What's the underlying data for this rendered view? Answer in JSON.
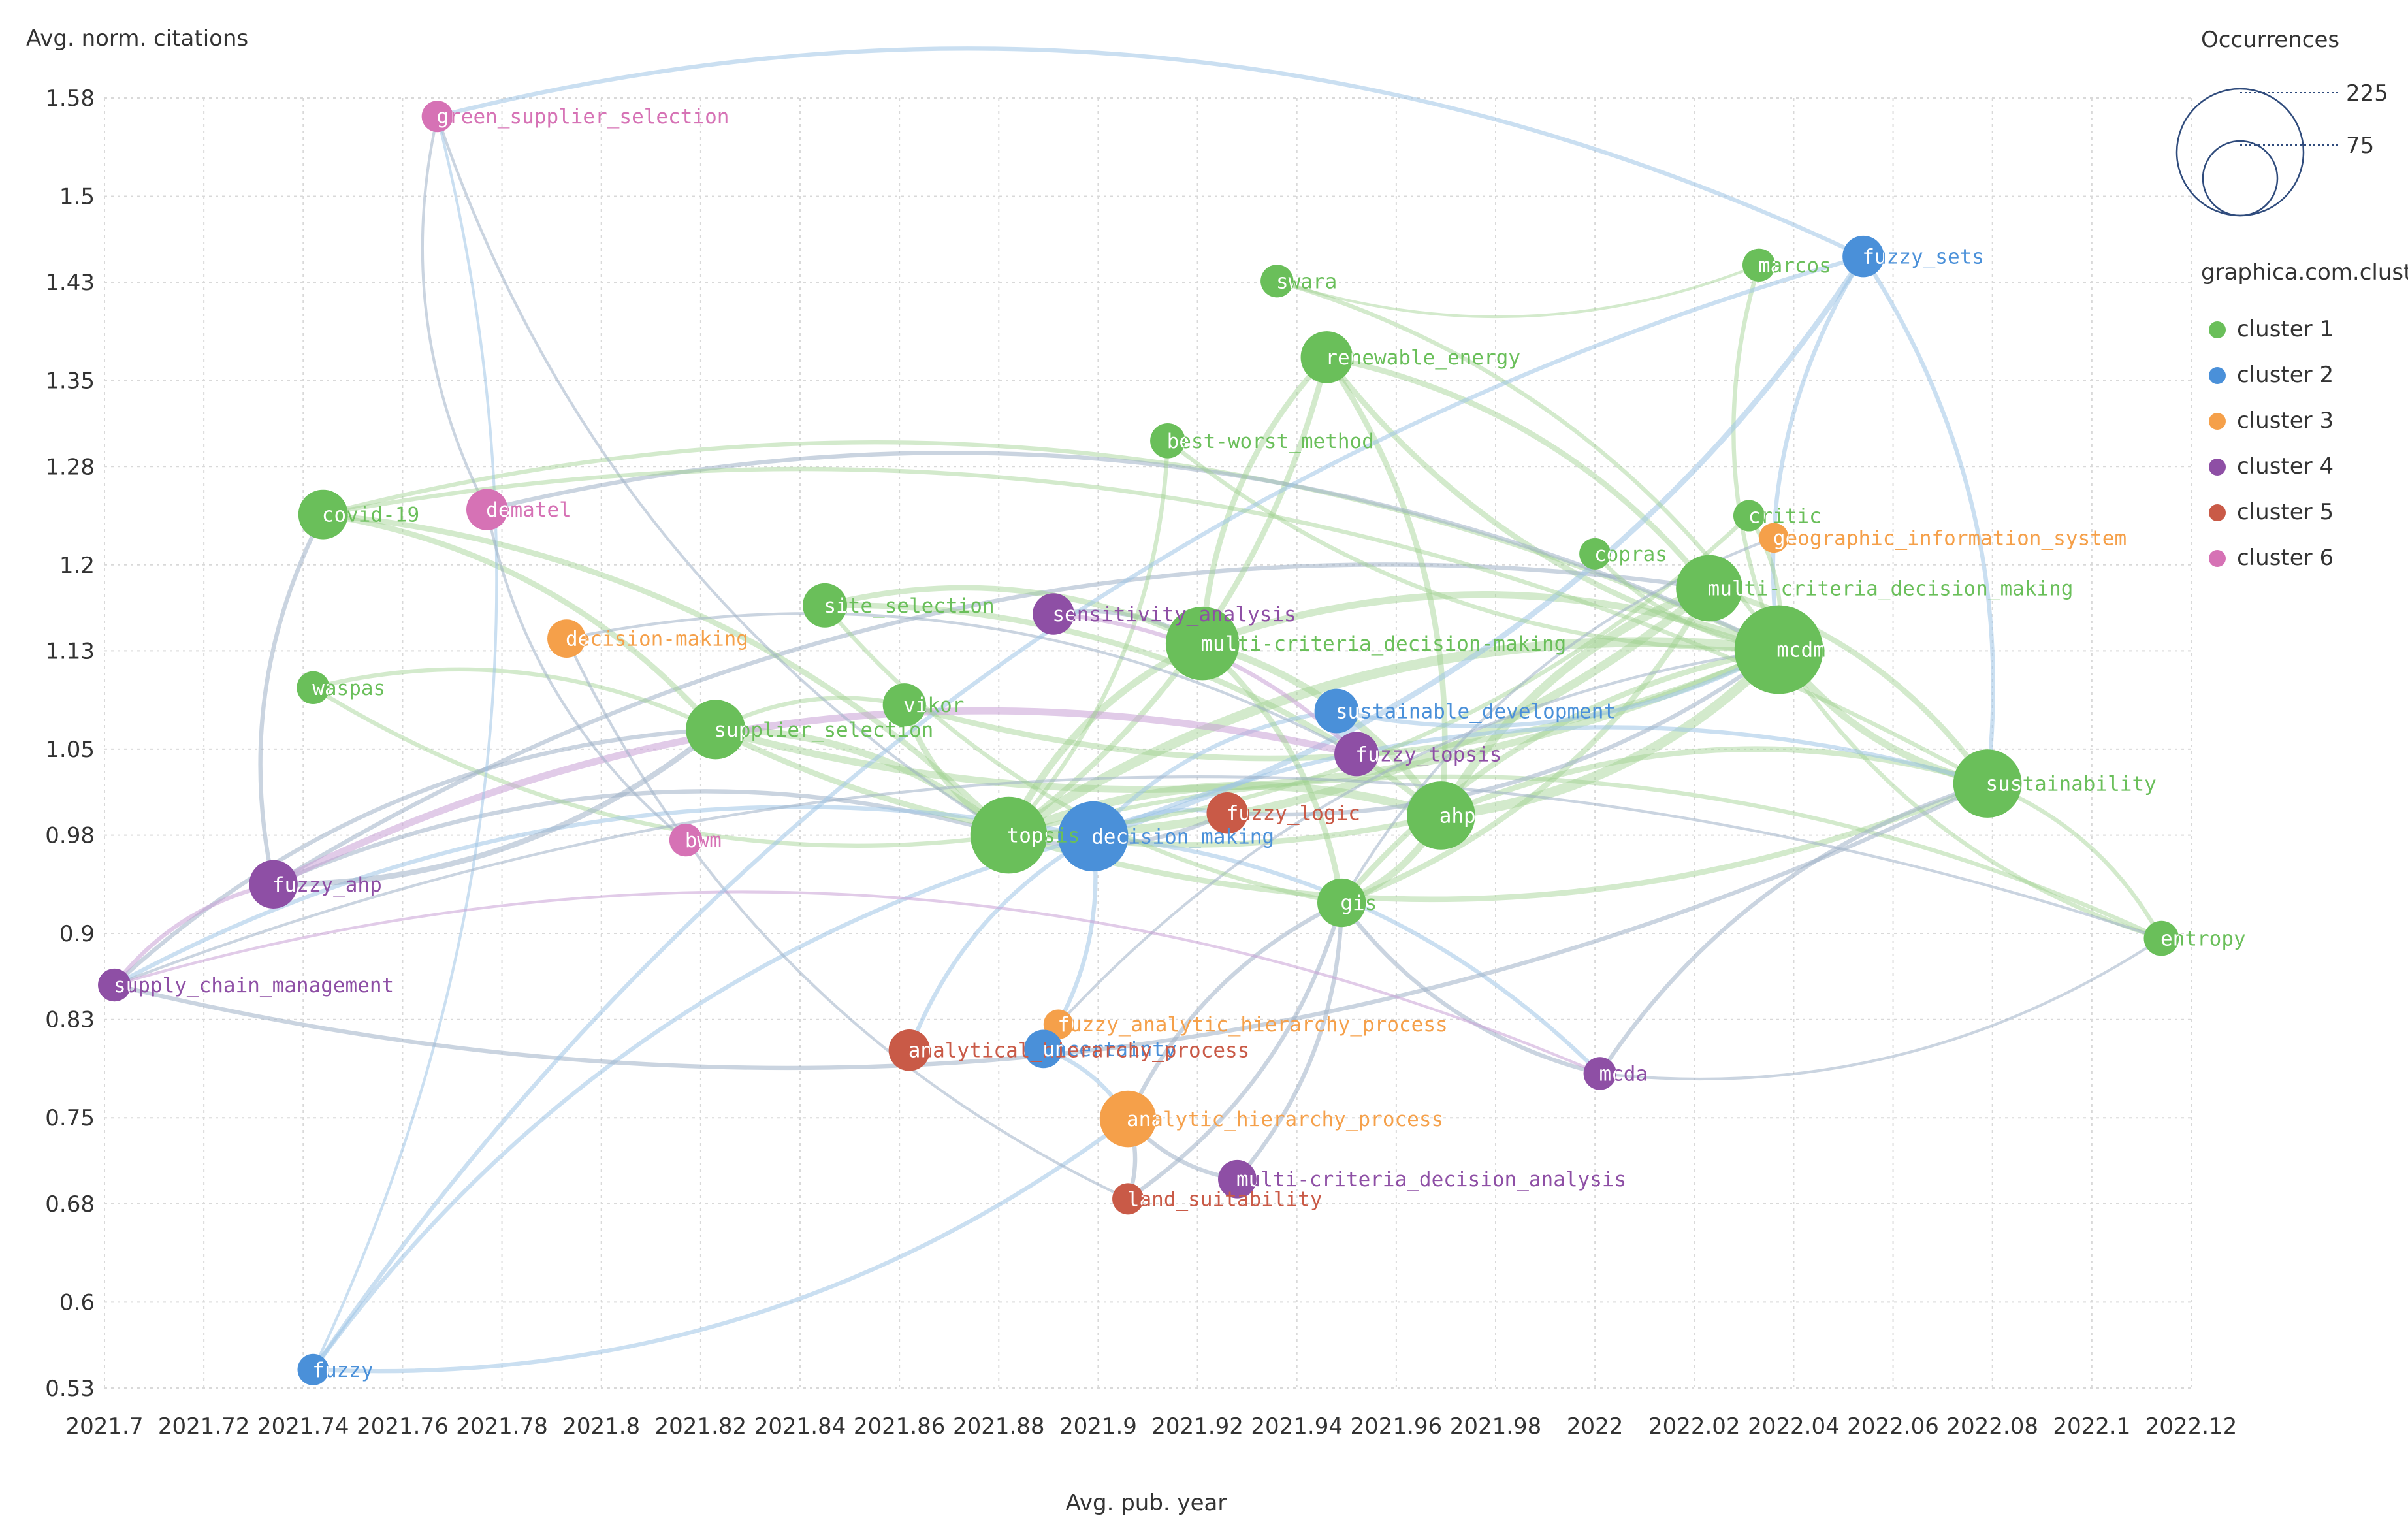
{
  "chart_data": {
    "type": "scatter",
    "subtype": "bubble-network",
    "xlabel": "Avg. pub. year",
    "ylabel": "Avg. norm. citations",
    "xlim": [
      2021.7,
      2022.12
    ],
    "ylim": [
      0.53,
      1.58
    ],
    "x_ticks": [
      "2021.7",
      "2021.72",
      "2021.74",
      "2021.76",
      "2021.78",
      "2021.8",
      "2021.82",
      "2021.84",
      "2021.86",
      "2021.88",
      "2021.9",
      "2021.92",
      "2021.94",
      "2021.96",
      "2021.98",
      "2022",
      "2022.02",
      "2022.04",
      "2022.06",
      "2022.08",
      "2022.1",
      "2022.12"
    ],
    "y_ticks": [
      "1.58",
      "1.5",
      "1.43",
      "1.35",
      "1.28",
      "1.2",
      "1.13",
      "1.05",
      "0.98",
      "0.9",
      "0.83",
      "0.75",
      "0.68",
      "0.6",
      "0.53"
    ],
    "size_legend": {
      "title": "Occurrences",
      "values": [
        225,
        75
      ]
    },
    "cluster_legend": {
      "title": "graphica.com.clusters",
      "items": [
        {
          "name": "cluster 1",
          "color": "#6abf5a"
        },
        {
          "name": "cluster 2",
          "color": "#4a90d9"
        },
        {
          "name": "cluster 3",
          "color": "#f5a04a"
        },
        {
          "name": "cluster 4",
          "color": "#8e4fa5"
        },
        {
          "name": "cluster 5",
          "color": "#c95a47"
        },
        {
          "name": "cluster 6",
          "color": "#d672b5"
        }
      ]
    },
    "nodes": [
      {
        "label": "green supplier selection",
        "x": 2021.767,
        "y": 1.565,
        "occ": 20,
        "cluster": 6
      },
      {
        "label": "fuzzy sets",
        "x": 2022.054,
        "y": 1.451,
        "occ": 35,
        "cluster": 2
      },
      {
        "label": "marcos",
        "x": 2022.033,
        "y": 1.444,
        "occ": 22,
        "cluster": 1
      },
      {
        "label": "swara",
        "x": 2021.936,
        "y": 1.431,
        "occ": 22,
        "cluster": 1
      },
      {
        "label": "renewable energy",
        "x": 2021.946,
        "y": 1.369,
        "occ": 55,
        "cluster": 1
      },
      {
        "label": "best-worst method",
        "x": 2021.914,
        "y": 1.301,
        "occ": 25,
        "cluster": 1
      },
      {
        "label": "covid-19",
        "x": 2021.744,
        "y": 1.241,
        "occ": 50,
        "cluster": 1
      },
      {
        "label": "dematel",
        "x": 2021.777,
        "y": 1.245,
        "occ": 35,
        "cluster": 6
      },
      {
        "label": "critic",
        "x": 2022.031,
        "y": 1.24,
        "occ": 20,
        "cluster": 1
      },
      {
        "label": "geographic information system",
        "x": 2022.036,
        "y": 1.222,
        "occ": 18,
        "cluster": 3
      },
      {
        "label": "copras",
        "x": 2022.0,
        "y": 1.209,
        "occ": 20,
        "cluster": 1
      },
      {
        "label": "multi-criteria decision making",
        "x": 2022.023,
        "y": 1.181,
        "occ": 90,
        "cluster": 1
      },
      {
        "label": "site selection",
        "x": 2021.845,
        "y": 1.167,
        "occ": 40,
        "cluster": 1
      },
      {
        "label": "sensitivity analysis",
        "x": 2021.891,
        "y": 1.16,
        "occ": 35,
        "cluster": 4
      },
      {
        "label": "decision-making",
        "x": 2021.793,
        "y": 1.14,
        "occ": 30,
        "cluster": 3
      },
      {
        "label": "multi-criteria decision-making",
        "x": 2021.921,
        "y": 1.136,
        "occ": 110,
        "cluster": 1
      },
      {
        "label": "mcdm",
        "x": 2022.037,
        "y": 1.131,
        "occ": 160,
        "cluster": 1
      },
      {
        "label": "waspas",
        "x": 2021.742,
        "y": 1.1,
        "occ": 22,
        "cluster": 1
      },
      {
        "label": "sustainable development",
        "x": 2021.948,
        "y": 1.081,
        "occ": 40,
        "cluster": 2
      },
      {
        "label": "vikor",
        "x": 2021.861,
        "y": 1.086,
        "occ": 38,
        "cluster": 1
      },
      {
        "label": "supplier selection",
        "x": 2021.823,
        "y": 1.066,
        "occ": 72,
        "cluster": 1
      },
      {
        "label": "fuzzy topsis",
        "x": 2021.952,
        "y": 1.046,
        "occ": 40,
        "cluster": 4
      },
      {
        "label": "sustainability",
        "x": 2022.079,
        "y": 1.022,
        "occ": 95,
        "cluster": 1
      },
      {
        "label": "fuzzy logic",
        "x": 2021.926,
        "y": 0.998,
        "occ": 35,
        "cluster": 5
      },
      {
        "label": "ahp",
        "x": 2021.969,
        "y": 0.996,
        "occ": 95,
        "cluster": 1
      },
      {
        "label": "topsis",
        "x": 2021.882,
        "y": 0.98,
        "occ": 120,
        "cluster": 1
      },
      {
        "label": "decision making",
        "x": 2021.899,
        "y": 0.979,
        "occ": 100,
        "cluster": 2
      },
      {
        "label": "bwm",
        "x": 2021.817,
        "y": 0.976,
        "occ": 22,
        "cluster": 6
      },
      {
        "label": "fuzzy ahp",
        "x": 2021.734,
        "y": 0.94,
        "occ": 48,
        "cluster": 4
      },
      {
        "label": "gis",
        "x": 2021.949,
        "y": 0.925,
        "occ": 48,
        "cluster": 1
      },
      {
        "label": "entropy",
        "x": 2022.114,
        "y": 0.896,
        "occ": 25,
        "cluster": 1
      },
      {
        "label": "supply chain management",
        "x": 2021.702,
        "y": 0.858,
        "occ": 22,
        "cluster": 4
      },
      {
        "label": "fuzzy analytic hierarchy process",
        "x": 2021.892,
        "y": 0.826,
        "occ": 18,
        "cluster": 3
      },
      {
        "label": "uncertainty",
        "x": 2021.889,
        "y": 0.806,
        "occ": 30,
        "cluster": 2
      },
      {
        "label": "analytical hierarchy process",
        "x": 2021.862,
        "y": 0.805,
        "occ": 35,
        "cluster": 5
      },
      {
        "label": "mcda",
        "x": 2022.001,
        "y": 0.786,
        "occ": 22,
        "cluster": 4
      },
      {
        "label": "analytic hierarchy process",
        "x": 2021.906,
        "y": 0.749,
        "occ": 65,
        "cluster": 3
      },
      {
        "label": "multi-criteria decision analysis",
        "x": 2021.928,
        "y": 0.7,
        "occ": 30,
        "cluster": 4
      },
      {
        "label": "land suitability",
        "x": 2021.906,
        "y": 0.684,
        "occ": 20,
        "cluster": 5
      },
      {
        "label": "fuzzy",
        "x": 2021.742,
        "y": 0.545,
        "occ": 20,
        "cluster": 2
      }
    ],
    "links": [
      [
        "mcdm",
        "topsis",
        6
      ],
      [
        "mcdm",
        "ahp",
        6
      ],
      [
        "mcdm",
        "multi-criteria decision-making",
        4
      ],
      [
        "mcdm",
        "supplier selection",
        4
      ],
      [
        "mcdm",
        "sustainability",
        4
      ],
      [
        "mcdm",
        "renewable energy",
        3
      ],
      [
        "mcdm",
        "covid-19",
        2
      ],
      [
        "mcdm",
        "vikor",
        3
      ],
      [
        "mcdm",
        "gis",
        3
      ],
      [
        "mcdm",
        "fuzzy sets",
        2
      ],
      [
        "mcdm",
        "entropy",
        2
      ],
      [
        "mcdm",
        "marcos",
        2
      ],
      [
        "mcdm",
        "critic",
        2
      ],
      [
        "multi-criteria decision making",
        "topsis",
        5
      ],
      [
        "multi-criteria decision making",
        "ahp",
        5
      ],
      [
        "multi-criteria decision making",
        "sustainability",
        3
      ],
      [
        "multi-criteria decision making",
        "renewable energy",
        3
      ],
      [
        "multi-criteria decision making",
        "gis",
        3
      ],
      [
        "multi-criteria decision making",
        "fuzzy ahp",
        2
      ],
      [
        "topsis",
        "ahp",
        5
      ],
      [
        "topsis",
        "supplier selection",
        4
      ],
      [
        "topsis",
        "multi-criteria decision-making",
        4
      ],
      [
        "topsis",
        "covid-19",
        3
      ],
      [
        "topsis",
        "vikor",
        3
      ],
      [
        "topsis",
        "fuzzy ahp",
        2
      ],
      [
        "topsis",
        "waspas",
        2
      ],
      [
        "topsis",
        "sustainability",
        3
      ],
      [
        "topsis",
        "entropy",
        2
      ],
      [
        "topsis",
        "renewable energy",
        3
      ],
      [
        "ahp",
        "gis",
        4
      ],
      [
        "ahp",
        "multi-criteria decision-making",
        4
      ],
      [
        "ahp",
        "supplier selection",
        3
      ],
      [
        "ahp",
        "site selection",
        3
      ],
      [
        "ahp",
        "sustainability",
        3
      ],
      [
        "ahp",
        "renewable energy",
        3
      ],
      [
        "decision making",
        "sustainable development",
        2
      ],
      [
        "decision making",
        "fuzzy sets",
        3
      ],
      [
        "decision making",
        "uncertainty",
        2
      ],
      [
        "decision making",
        "analytical hierarchy process",
        2
      ],
      [
        "decision making",
        "sustainability",
        2
      ],
      [
        "decision making",
        "supply chain management",
        2
      ],
      [
        "decision making",
        "mcda",
        2
      ],
      [
        "decision making",
        "fuzzy",
        2
      ],
      [
        "decision making",
        "fuzzy logic",
        2
      ],
      [
        "supplier selection",
        "covid-19",
        3
      ],
      [
        "supplier selection",
        "fuzzy ahp",
        3
      ],
      [
        "supplier selection",
        "supply chain management",
        2
      ],
      [
        "supplier selection",
        "vikor",
        2
      ],
      [
        "supplier selection",
        "waspas",
        2
      ],
      [
        "fuzzy ahp",
        "fuzzy topsis",
        4
      ],
      [
        "fuzzy ahp",
        "supply chain management",
        2
      ],
      [
        "fuzzy ahp",
        "covid-19",
        2
      ],
      [
        "green supplier selection",
        "dematel",
        1
      ],
      [
        "green supplier selection",
        "fuzzy sets",
        2
      ],
      [
        "green supplier selection",
        "topsis",
        1
      ],
      [
        "green supplier selection",
        "fuzzy",
        1
      ],
      [
        "dematel",
        "bwm",
        1
      ],
      [
        "dematel",
        "mcdm",
        2
      ],
      [
        "multi-criteria decision-making",
        "sensitivity analysis",
        2
      ],
      [
        "multi-criteria decision-making",
        "gis",
        3
      ],
      [
        "multi-criteria decision-making",
        "site selection",
        3
      ],
      [
        "multi-criteria decision-making",
        "renewable energy",
        3
      ],
      [
        "sustainability",
        "fuzzy sets",
        2
      ],
      [
        "sustainability",
        "entropy",
        2
      ],
      [
        "sustainability",
        "mcda",
        2
      ],
      [
        "sustainability",
        "supply chain management",
        2
      ],
      [
        "gis",
        "analytic hierarchy process",
        2
      ],
      [
        "gis",
        "multi-criteria decision analysis",
        2
      ],
      [
        "gis",
        "mcda",
        2
      ],
      [
        "gis",
        "land suitability",
        2
      ],
      [
        "analytic hierarchy process",
        "uncertainty",
        2
      ],
      [
        "analytic hierarchy process",
        "land suitability",
        2
      ],
      [
        "analytic hierarchy process",
        "multi-criteria decision analysis",
        2
      ],
      [
        "analytic hierarchy process",
        "fuzzy",
        2
      ],
      [
        "best-worst method",
        "mcdm",
        2
      ],
      [
        "best-worst method",
        "topsis",
        2
      ],
      [
        "swara",
        "marcos",
        1
      ],
      [
        "swara",
        "mcdm",
        2
      ],
      [
        "copras",
        "mcdm",
        2
      ],
      [
        "critic",
        "topsis",
        2
      ],
      [
        "geographic information system",
        "gis",
        1
      ],
      [
        "decision-making",
        "fuzzy topsis",
        1
      ],
      [
        "decision-making",
        "land suitability",
        1
      ],
      [
        "sensitivity analysis",
        "fuzzy topsis",
        2
      ],
      [
        "fuzzy logic",
        "mcdm",
        2
      ],
      [
        "fuzzy logic",
        "topsis",
        2
      ],
      [
        "sustainable development",
        "mcdm",
        2
      ],
      [
        "fuzzy analytic hierarchy process",
        "mcdm",
        1
      ],
      [
        "entropy",
        "supply chain management",
        1
      ],
      [
        "entropy",
        "mcda",
        1
      ],
      [
        "mcda",
        "supply chain management",
        1
      ],
      [
        "fuzzy",
        "fuzzy sets",
        2
      ],
      [
        "site selection",
        "gis",
        2
      ],
      [
        "covid-19",
        "sustainability",
        2
      ]
    ]
  }
}
